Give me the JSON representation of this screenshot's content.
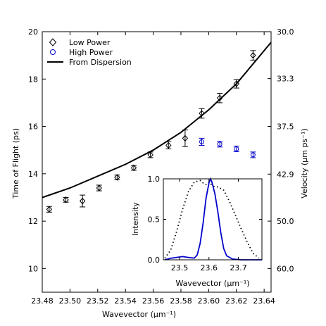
{
  "chart_data": [
    {
      "type": "scatter",
      "xlabel": "Wavevector (μm⁻¹)",
      "ylabel": "Time of Flight (ps)",
      "y2label": "Velocity (μm ps⁻¹)",
      "xlim": [
        23.48,
        23.645
      ],
      "ylim": [
        9,
        20
      ],
      "x_ticks": [
        "23.48",
        "23.50",
        "23.52",
        "23.54",
        "23.56",
        "23.58",
        "23.60",
        "23.62",
        "23.64"
      ],
      "y_ticks": [
        "10",
        "12",
        "14",
        "16",
        "18",
        "20"
      ],
      "y2_ticks": [
        "30.0",
        "33.3",
        "37.5",
        "42.9",
        "50.0",
        "60.0"
      ],
      "grid": false,
      "legend_position": "top-left",
      "series": [
        {
          "name": "Low Power",
          "marker": "diamond",
          "color": "#000000",
          "x": [
            23.485,
            23.497,
            23.509,
            23.521,
            23.534,
            23.546,
            23.558,
            23.571,
            23.583,
            23.595,
            23.608,
            23.62,
            23.632
          ],
          "y": [
            12.5,
            12.9,
            12.85,
            13.4,
            13.85,
            14.25,
            14.8,
            15.2,
            15.5,
            16.55,
            17.2,
            17.8,
            19.0
          ],
          "err": [
            0.12,
            0.1,
            0.25,
            0.12,
            0.1,
            0.1,
            0.12,
            0.15,
            0.35,
            0.2,
            0.2,
            0.18,
            0.2
          ]
        },
        {
          "name": "High Power",
          "marker": "circle",
          "color": "#0000cc",
          "x": [
            23.595,
            23.608,
            23.62,
            23.632
          ],
          "y": [
            15.35,
            15.25,
            15.05,
            14.8
          ],
          "err": [
            0.15,
            0.12,
            0.12,
            0.12
          ]
        },
        {
          "name": "From Dispersion",
          "type": "line",
          "color": "#000000",
          "x": [
            23.48,
            23.5,
            23.52,
            23.54,
            23.56,
            23.58,
            23.6,
            23.62,
            23.645
          ],
          "y": [
            13.0,
            13.4,
            13.9,
            14.4,
            15.0,
            15.75,
            16.7,
            17.8,
            19.55
          ]
        }
      ]
    },
    {
      "type": "line",
      "xlabel": "Wavevector (μm⁻¹)",
      "ylabel": "Intensity",
      "xlim": [
        23.445,
        23.78
      ],
      "ylim": [
        0.0,
        1.0
      ],
      "x_ticks": [
        "23.5",
        "23.6",
        "23.7"
      ],
      "y_ticks": [
        "0.0",
        "0.5",
        "1.0"
      ],
      "series": [
        {
          "style": "dotted",
          "color": "#000000",
          "x": [
            23.45,
            23.47,
            23.49,
            23.51,
            23.53,
            23.55,
            23.57,
            23.58,
            23.59,
            23.6,
            23.61,
            23.62,
            23.63,
            23.65,
            23.67,
            23.69,
            23.71,
            23.73,
            23.75,
            23.77
          ],
          "y": [
            0.02,
            0.12,
            0.35,
            0.62,
            0.84,
            0.96,
            0.98,
            0.95,
            0.93,
            0.96,
            0.92,
            0.9,
            0.9,
            0.86,
            0.72,
            0.55,
            0.38,
            0.22,
            0.08,
            0.02
          ]
        },
        {
          "style": "solid",
          "color": "#0000cc",
          "x": [
            23.45,
            23.47,
            23.49,
            23.51,
            23.53,
            23.55,
            23.56,
            23.57,
            23.58,
            23.59,
            23.6,
            23.605,
            23.61,
            23.62,
            23.63,
            23.64,
            23.65,
            23.66,
            23.68,
            23.71,
            23.74,
            23.78
          ],
          "y": [
            0.0,
            0.02,
            0.03,
            0.04,
            0.03,
            0.02,
            0.06,
            0.2,
            0.45,
            0.76,
            0.95,
            1.0,
            0.96,
            0.82,
            0.6,
            0.34,
            0.14,
            0.05,
            0.01,
            0.0,
            0.0,
            0.0
          ]
        }
      ]
    }
  ]
}
